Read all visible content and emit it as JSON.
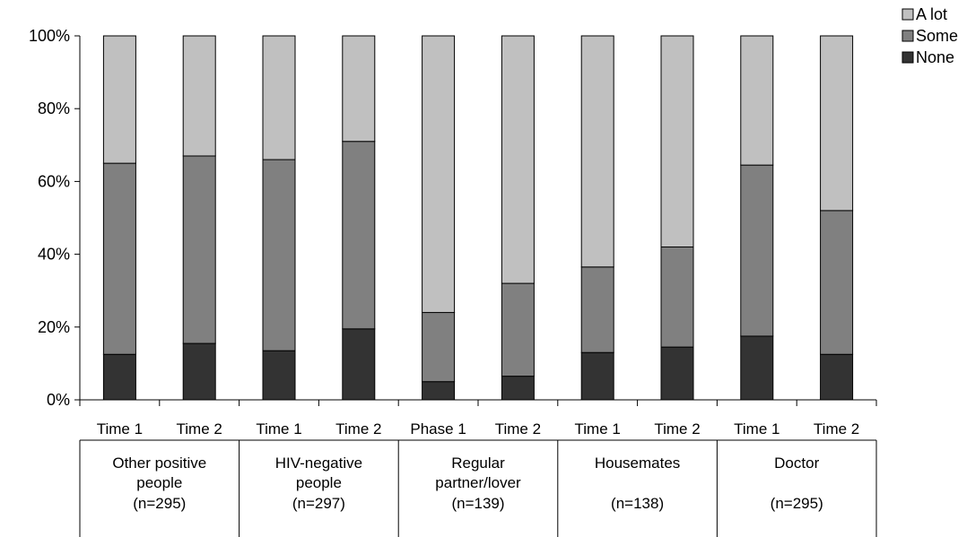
{
  "chart_data": {
    "type": "bar",
    "stacked": true,
    "percent": true,
    "categories": [
      "Time 1",
      "Time 2",
      "Time 1",
      "Time 2",
      "Phase 1",
      "Time 2",
      "Time 1",
      "Time 2",
      "Time 1",
      "Time 2"
    ],
    "groups": [
      {
        "label_lines": [
          "Other positive",
          "people",
          "(n=295)"
        ]
      },
      {
        "label_lines": [
          "HIV-negative",
          "people",
          "(n=297)"
        ]
      },
      {
        "label_lines": [
          "Regular",
          "partner/lover",
          "(n=139)"
        ]
      },
      {
        "label_lines": [
          "Housemates",
          "",
          "(n=138)"
        ]
      },
      {
        "label_lines": [
          "Doctor",
          "",
          "(n=295)"
        ]
      }
    ],
    "series": [
      {
        "name": "None",
        "color": "#333333",
        "values": [
          12.5,
          15.5,
          13.5,
          19.5,
          5.0,
          6.5,
          13.0,
          14.5,
          17.5,
          12.5
        ]
      },
      {
        "name": "Some",
        "color": "#808080",
        "values": [
          52.5,
          51.5,
          52.5,
          51.5,
          19.0,
          25.5,
          23.5,
          27.5,
          47.0,
          39.5
        ]
      },
      {
        "name": "A lot",
        "color": "#c0c0c0",
        "values": [
          35.0,
          33.0,
          34.0,
          29.0,
          76.0,
          68.0,
          63.5,
          58.0,
          35.5,
          48.0
        ]
      }
    ],
    "legend_order": [
      "A lot",
      "Some",
      "None"
    ],
    "legend_position": "top-right",
    "ylim": [
      0,
      100
    ],
    "yticks": [
      "0%",
      "20%",
      "40%",
      "60%",
      "80%",
      "100%"
    ],
    "title": "",
    "xlabel": "",
    "ylabel": ""
  }
}
